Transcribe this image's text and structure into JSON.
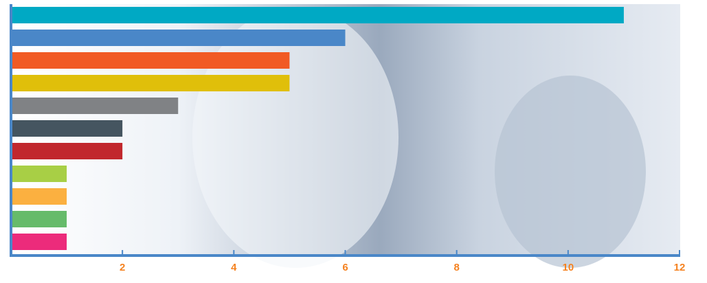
{
  "chart_data": {
    "type": "bar",
    "orientation": "horizontal",
    "categories": [
      null,
      null,
      null,
      null,
      null,
      null,
      null,
      null,
      null,
      null,
      null
    ],
    "values": [
      11,
      6,
      5,
      5,
      3,
      2,
      2,
      1,
      1,
      1,
      1
    ],
    "colors": [
      "#00a9c4",
      "#4a87c8",
      "#f15a24",
      "#e0bf0a",
      "#808285",
      "#455560",
      "#c1272d",
      "#a8cf45",
      "#fbb040",
      "#66bb6a",
      "#ec2b7b"
    ],
    "xlim": [
      0,
      12
    ],
    "xticks": [
      2,
      4,
      6,
      8,
      10,
      12
    ],
    "axis_color": "#4a87c8",
    "tick_label_color": "#f58220",
    "grid": false
  }
}
